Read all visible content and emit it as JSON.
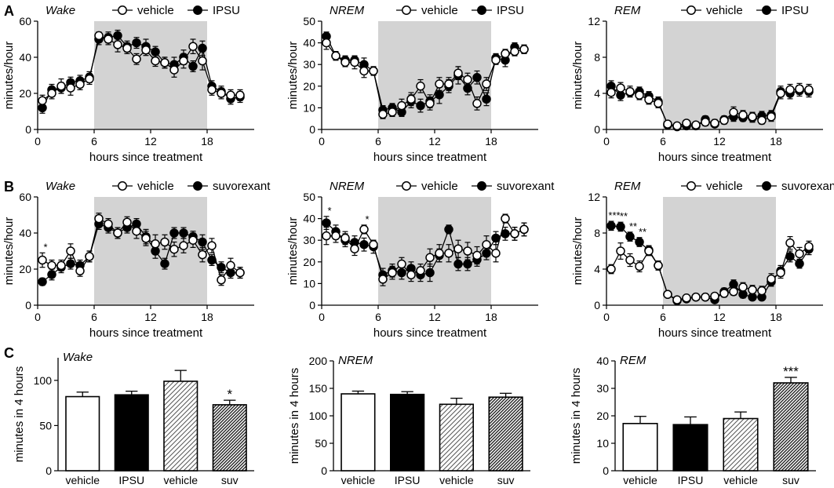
{
  "colors": {
    "shade": "#d3d3d3",
    "ink": "#000000",
    "open": "#ffffff"
  },
  "panels": {
    "A": "A",
    "B": "B",
    "C": "C"
  },
  "chart_data": [
    {
      "type": "line",
      "panel": "A",
      "title": "Wake",
      "xlabel": "hours since treatment",
      "ylabel": "minutes/hour",
      "xlim": [
        0,
        23
      ],
      "xticks": [
        0,
        6,
        12,
        18
      ],
      "ylim": [
        0,
        60
      ],
      "yticks": [
        0,
        20,
        40,
        60
      ],
      "shaded": [
        6,
        18
      ],
      "x": [
        0.5,
        1.5,
        2.5,
        3.5,
        4.5,
        5.5,
        6.5,
        7.5,
        8.5,
        9.5,
        10.5,
        11.5,
        12.5,
        13.5,
        14.5,
        15.5,
        16.5,
        17.5,
        18.5,
        19.5,
        20.5,
        21.5
      ],
      "series": [
        {
          "name": "vehicle",
          "marker": "open",
          "values": [
            16,
            20,
            24,
            23,
            25,
            28,
            52,
            50,
            47,
            45,
            39,
            44,
            38,
            37,
            33,
            38,
            46,
            38,
            22,
            20,
            19,
            19
          ],
          "errors": [
            3,
            3,
            4,
            4,
            3,
            3,
            2,
            3,
            4,
            3,
            3,
            3,
            3,
            3,
            4,
            4,
            4,
            5,
            3,
            3,
            3,
            3
          ]
        },
        {
          "name": "IPSU",
          "marker": "filled",
          "values": [
            12,
            22,
            23,
            26,
            27,
            29,
            50,
            51,
            52,
            46,
            48,
            46,
            43,
            37,
            36,
            40,
            35,
            45,
            24,
            21,
            17,
            18
          ],
          "errors": [
            3,
            3,
            3,
            3,
            3,
            3,
            3,
            3,
            3,
            3,
            3,
            4,
            3,
            3,
            4,
            4,
            3,
            4,
            3,
            3,
            3,
            3
          ]
        }
      ],
      "annotations": []
    },
    {
      "type": "line",
      "panel": "A",
      "title": "NREM",
      "xlabel": "hours since treatment",
      "ylabel": "minutes/hour",
      "xlim": [
        0,
        23
      ],
      "xticks": [
        0,
        6,
        12,
        18
      ],
      "ylim": [
        0,
        50
      ],
      "yticks": [
        0,
        10,
        20,
        30,
        40,
        50
      ],
      "shaded": [
        6,
        18
      ],
      "x": [
        0.5,
        1.5,
        2.5,
        3.5,
        4.5,
        5.5,
        6.5,
        7.5,
        8.5,
        9.5,
        10.5,
        11.5,
        12.5,
        13.5,
        14.5,
        15.5,
        16.5,
        17.5,
        18.5,
        19.5,
        20.5,
        21.5
      ],
      "series": [
        {
          "name": "vehicle",
          "marker": "open",
          "values": [
            40,
            34,
            31,
            31,
            27,
            27,
            7,
            8,
            11,
            14,
            20,
            12,
            21,
            21,
            26,
            23,
            12,
            21,
            32,
            35,
            36,
            37
          ],
          "errors": [
            3,
            2,
            2,
            3,
            3,
            2,
            2,
            2,
            3,
            3,
            3,
            3,
            3,
            3,
            3,
            3,
            3,
            3,
            2,
            2,
            2,
            2
          ]
        },
        {
          "name": "IPSU",
          "marker": "filled",
          "values": [
            43,
            34,
            32,
            32,
            30,
            27,
            9,
            10,
            8,
            13,
            11,
            13,
            16,
            20,
            25,
            19,
            24,
            14,
            33,
            32,
            38,
            37
          ],
          "errors": [
            2,
            2,
            2,
            2,
            3,
            2,
            2,
            2,
            2,
            3,
            3,
            3,
            4,
            3,
            4,
            3,
            3,
            3,
            2,
            3,
            2,
            2
          ]
        }
      ],
      "annotations": []
    },
    {
      "type": "line",
      "panel": "A",
      "title": "REM",
      "xlabel": "hours since treatment",
      "ylabel": "minutes/hour",
      "xlim": [
        0,
        23
      ],
      "xticks": [
        0,
        6,
        12,
        18
      ],
      "ylim": [
        0,
        12
      ],
      "yticks": [
        0,
        4,
        8,
        12
      ],
      "shaded": [
        6,
        18
      ],
      "x": [
        0.5,
        1.5,
        2.5,
        3.5,
        4.5,
        5.5,
        6.5,
        7.5,
        8.5,
        9.5,
        10.5,
        11.5,
        12.5,
        13.5,
        14.5,
        15.5,
        16.5,
        17.5,
        18.5,
        19.5,
        20.5,
        21.5
      ],
      "series": [
        {
          "name": "vehicle",
          "marker": "open",
          "values": [
            4.1,
            4.6,
            4.2,
            3.8,
            3.3,
            2.9,
            0.6,
            0.4,
            0.7,
            0.5,
            0.8,
            0.7,
            1.0,
            1.9,
            1.6,
            1.4,
            1.0,
            1.4,
            4.0,
            4.4,
            4.5,
            4.4
          ],
          "errors": [
            0.6,
            0.6,
            0.6,
            0.5,
            0.5,
            0.5,
            0.3,
            0.2,
            0.3,
            0.3,
            0.4,
            0.4,
            0.4,
            0.6,
            0.5,
            0.5,
            0.4,
            0.5,
            0.6,
            0.6,
            0.6,
            0.6
          ]
        },
        {
          "name": "IPSU",
          "marker": "filled",
          "values": [
            4.8,
            3.8,
            4.1,
            4.2,
            3.7,
            3.1,
            0.5,
            0.3,
            0.4,
            0.4,
            1.1,
            0.6,
            1.1,
            1.4,
            1.3,
            1.3,
            1.5,
            1.6,
            4.2,
            4.0,
            4.3,
            4.2
          ],
          "errors": [
            0.6,
            0.6,
            0.5,
            0.5,
            0.5,
            0.5,
            0.3,
            0.2,
            0.3,
            0.3,
            0.4,
            0.3,
            0.4,
            0.5,
            0.4,
            0.5,
            0.5,
            0.5,
            0.6,
            0.6,
            0.6,
            0.6
          ]
        }
      ],
      "annotations": []
    },
    {
      "type": "line",
      "panel": "B",
      "title": "Wake",
      "xlabel": "hours since treatment",
      "ylabel": "minutes/hour",
      "xlim": [
        0,
        23
      ],
      "xticks": [
        0,
        6,
        12,
        18
      ],
      "ylim": [
        0,
        60
      ],
      "yticks": [
        0,
        20,
        40,
        60
      ],
      "shaded": [
        6,
        18
      ],
      "x": [
        0.5,
        1.5,
        2.5,
        3.5,
        4.5,
        5.5,
        6.5,
        7.5,
        8.5,
        9.5,
        10.5,
        11.5,
        12.5,
        13.5,
        14.5,
        15.5,
        16.5,
        17.5,
        18.5,
        19.5,
        20.5,
        21.5
      ],
      "series": [
        {
          "name": "vehicle",
          "marker": "open",
          "values": [
            25,
            22,
            22,
            30,
            19,
            27,
            48,
            45,
            40,
            46,
            41,
            37,
            34,
            35,
            31,
            33,
            36,
            28,
            33,
            14,
            22,
            18
          ],
          "errors": [
            4,
            3,
            3,
            4,
            3,
            3,
            3,
            3,
            3,
            3,
            4,
            4,
            5,
            4,
            4,
            4,
            4,
            4,
            4,
            3,
            4,
            3
          ]
        },
        {
          "name": "suvorexant",
          "marker": "filled",
          "values": [
            13,
            17,
            21,
            23,
            22,
            27,
            45,
            43,
            40,
            43,
            45,
            38,
            30,
            23,
            40,
            40,
            38,
            35,
            25,
            21,
            18,
            18
          ],
          "errors": [
            2,
            3,
            3,
            3,
            3,
            3,
            3,
            3,
            3,
            3,
            3,
            4,
            4,
            3,
            3,
            3,
            3,
            4,
            3,
            3,
            3,
            3
          ]
        }
      ],
      "annotations": [
        {
          "x": 0.5,
          "text": "*"
        }
      ]
    },
    {
      "type": "line",
      "panel": "B",
      "title": "NREM",
      "xlabel": "hours since treatment",
      "ylabel": "minutes/hour",
      "xlim": [
        0,
        23
      ],
      "xticks": [
        0,
        6,
        12,
        18
      ],
      "ylim": [
        0,
        50
      ],
      "yticks": [
        0,
        10,
        20,
        30,
        40,
        50
      ],
      "shaded": [
        6,
        18
      ],
      "x": [
        0.5,
        1.5,
        2.5,
        3.5,
        4.5,
        5.5,
        6.5,
        7.5,
        8.5,
        9.5,
        10.5,
        11.5,
        12.5,
        13.5,
        14.5,
        15.5,
        16.5,
        17.5,
        18.5,
        19.5,
        20.5,
        21.5
      ],
      "series": [
        {
          "name": "vehicle",
          "marker": "open",
          "values": [
            32,
            32,
            31,
            26,
            35,
            28,
            12,
            15,
            19,
            14,
            16,
            22,
            24,
            24,
            26,
            25,
            23,
            28,
            24,
            40,
            33,
            35
          ],
          "errors": [
            4,
            3,
            3,
            3,
            2,
            2,
            3,
            3,
            3,
            3,
            3,
            4,
            4,
            4,
            4,
            4,
            4,
            4,
            4,
            2,
            3,
            3
          ]
        },
        {
          "name": "suvorexant",
          "marker": "filled",
          "values": [
            38,
            34,
            30,
            29,
            28,
            27,
            14,
            16,
            15,
            17,
            14,
            15,
            23,
            35,
            19,
            19,
            21,
            24,
            31,
            33,
            33,
            35
          ],
          "errors": [
            3,
            3,
            3,
            3,
            3,
            3,
            3,
            3,
            3,
            3,
            3,
            4,
            3,
            2,
            3,
            3,
            3,
            3,
            3,
            3,
            3,
            3
          ]
        }
      ],
      "annotations": [
        {
          "x": 0.5,
          "text": "*"
        },
        {
          "x": 4.5,
          "text": "*"
        }
      ]
    },
    {
      "type": "line",
      "panel": "B",
      "title": "REM",
      "xlabel": "hours since treatment",
      "ylabel": "minutes/hour",
      "xlim": [
        0,
        23
      ],
      "xticks": [
        0,
        6,
        12,
        18
      ],
      "ylim": [
        0,
        12
      ],
      "yticks": [
        0,
        4,
        8,
        12
      ],
      "shaded": [
        6,
        18
      ],
      "x": [
        0.5,
        1.5,
        2.5,
        3.5,
        4.5,
        5.5,
        6.5,
        7.5,
        8.5,
        9.5,
        10.5,
        11.5,
        12.5,
        13.5,
        14.5,
        15.5,
        16.5,
        17.5,
        18.5,
        19.5,
        20.5,
        21.5
      ],
      "series": [
        {
          "name": "vehicle",
          "marker": "open",
          "values": [
            4.0,
            6.0,
            5.0,
            4.3,
            6.0,
            4.4,
            1.2,
            0.6,
            0.8,
            0.9,
            0.9,
            1.0,
            1.3,
            1.5,
            2.0,
            1.7,
            1.6,
            2.9,
            3.6,
            6.9,
            5.7,
            6.5
          ],
          "errors": [
            0.5,
            0.9,
            0.7,
            0.6,
            0.5,
            0.5,
            0.2,
            0.2,
            0.3,
            0.3,
            0.3,
            0.3,
            0.4,
            0.4,
            0.5,
            0.5,
            0.5,
            0.6,
            0.6,
            0.7,
            0.7,
            0.6
          ]
        },
        {
          "name": "suvorexant",
          "marker": "filled",
          "values": [
            8.8,
            8.7,
            7.6,
            7.0,
            6.1,
            4.4,
            1.2,
            0.5,
            0.7,
            0.9,
            0.9,
            0.6,
            1.5,
            2.3,
            1.2,
            0.9,
            0.9,
            2.6,
            3.8,
            5.4,
            4.6,
            6.2
          ],
          "errors": [
            0.5,
            0.5,
            0.5,
            0.5,
            0.5,
            0.5,
            0.2,
            0.2,
            0.3,
            0.3,
            0.3,
            0.3,
            0.4,
            0.5,
            0.4,
            0.3,
            0.3,
            0.5,
            0.6,
            0.6,
            0.5,
            0.6
          ]
        }
      ],
      "annotations": [
        {
          "x": 0.5,
          "text": "***"
        },
        {
          "x": 1.5,
          "text": "**"
        },
        {
          "x": 2.5,
          "text": "**"
        },
        {
          "x": 3.5,
          "text": "**"
        }
      ]
    },
    {
      "type": "bar",
      "panel": "C",
      "title": "Wake",
      "ylabel": "minutes in 4 hours",
      "ylim": [
        0,
        125
      ],
      "yticks": [
        0,
        50,
        100
      ],
      "categories": [
        "vehicle",
        "IPSU",
        "vehicle",
        "suv"
      ],
      "styles": [
        "white",
        "black",
        "hatch-light",
        "hatch-dark"
      ],
      "values": [
        82,
        84,
        99,
        73
      ],
      "errors": [
        5,
        4,
        12,
        5
      ],
      "annotations": [
        {
          "index": 3,
          "text": "*"
        }
      ]
    },
    {
      "type": "bar",
      "panel": "C",
      "title": "NREM",
      "ylabel": "minutes in 4 hours",
      "ylim": [
        0,
        200
      ],
      "yticks": [
        0,
        50,
        100,
        150,
        200
      ],
      "categories": [
        "vehicle",
        "IPSU",
        "vehicle",
        "suv"
      ],
      "styles": [
        "white",
        "black",
        "hatch-light",
        "hatch-dark"
      ],
      "values": [
        140,
        139,
        121,
        134
      ],
      "errors": [
        5,
        5,
        11,
        7
      ],
      "annotations": []
    },
    {
      "type": "bar",
      "panel": "C",
      "title": "REM",
      "ylabel": "minutes in 4 hours",
      "ylim": [
        0,
        40
      ],
      "yticks": [
        0,
        10,
        20,
        30,
        40
      ],
      "categories": [
        "vehicle",
        "IPSU",
        "vehicle",
        "suv"
      ],
      "styles": [
        "white",
        "black",
        "hatch-light",
        "hatch-dark"
      ],
      "values": [
        17.2,
        16.8,
        19.0,
        32.0
      ],
      "errors": [
        2.6,
        2.8,
        2.4,
        2.0
      ],
      "annotations": [
        {
          "index": 3,
          "text": "***"
        }
      ]
    }
  ]
}
